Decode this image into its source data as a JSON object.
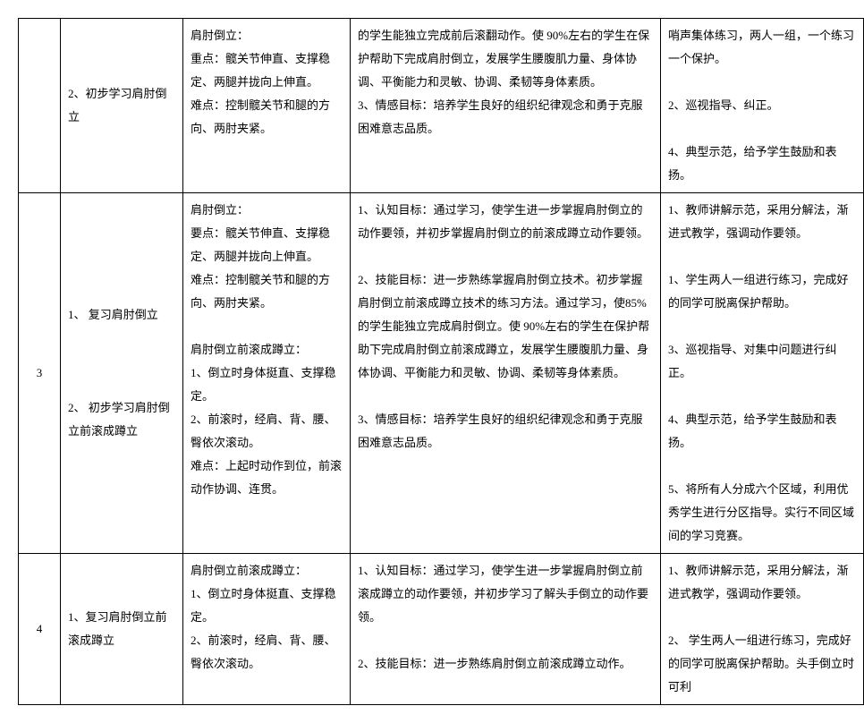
{
  "rows": [
    {
      "num": "",
      "topic": "2、初步学习肩肘倒立",
      "points": "肩肘倒立：\n重点：髋关节伸直、支撑稳定、两腿并拢向上伸直。\n难点：控制髋关节和腿的方向、两肘夹紧。",
      "goals": "的学生能独立完成前后滚翻动作。使 90%左右的学生在保护帮助下完成肩肘倒立，发展学生腰腹肌力量、身体协调、平衡能力和灵敏、协调、柔韧等身体素质。\n3、情感目标：培养学生良好的组织纪律观念和勇于克服困难意志品质。",
      "methods": "哨声集体练习，两人一组，一个练习一个保护。\n\n2、巡视指导、纠正。\n\n4、典型示范，给予学生鼓励和表扬。"
    },
    {
      "num": "3",
      "topic": "1、 复习肩肘倒立\n\n\n\n2、 初步学习肩肘倒立前滚成蹲立",
      "points": "肩肘倒立：\n要点：髋关节伸直、支撑稳定、两腿并拢向上伸直。\n难点：控制髋关节和腿的方向、两肘夹紧。\n\n肩肘倒立前滚成蹲立：\n1、倒立时身体挺直、支撑稳定。\n2、前滚时，经肩、背、腰、臀依次滚动。\n难点：上起时动作到位，前滚动作协调、连贯。",
      "goals": "1、认知目标：通过学习，使学生进一步掌握肩肘倒立的动作要领，并初步掌握肩肘倒立的前滚成蹲立动作要领。\n\n2、技能目标：进一步熟练掌握肩肘倒立技术。初步掌握肩肘倒立前滚成蹲立技术的练习方法。通过学习，使85%的学生能独立完成肩肘倒立。使 90%左右的学生在保护帮助下完成肩肘倒立前滚成蹲立，发展学生腰腹肌力量、身体协调、平衡能力和灵敏、协调、柔韧等身体素质。\n\n3、情感目标：培养学生良好的组织纪律观念和勇于克服困难意志品质。",
      "methods": "1、教师讲解示范，采用分解法，渐进式教学，强调动作要领。\n\n1、学生两人一组进行练习，完成好的同学可脱离保护帮助。\n\n3、巡视指导、对集中问题进行纠正。\n\n4、典型示范，给予学生鼓励和表扬。\n\n5、将所有人分成六个区域，利用优秀学生进行分区指导。实行不同区域间的学习竞赛。"
    },
    {
      "num": "4",
      "topic": "1、复习肩肘倒立前滚成蹲立",
      "points": "肩肘倒立前滚成蹲立：\n1、倒立时身体挺直、支撑稳定。\n2、前滚时，经肩、背、腰、臀依次滚动。",
      "goals": "1、认知目标：通过学习，使学生进一步掌握肩肘倒立前滚成蹲立的动作要领，并初步学习了解头手倒立的动作要领。\n\n2、技能目标：进一步熟练肩肘倒立前滚成蹲立动作。",
      "methods": "1、教师讲解示范，采用分解法，渐进式教学，强调动作要领。\n\n2、 学生两人一组进行练习，完成好的同学可脱离保护帮助。头手倒立时可利"
    }
  ]
}
